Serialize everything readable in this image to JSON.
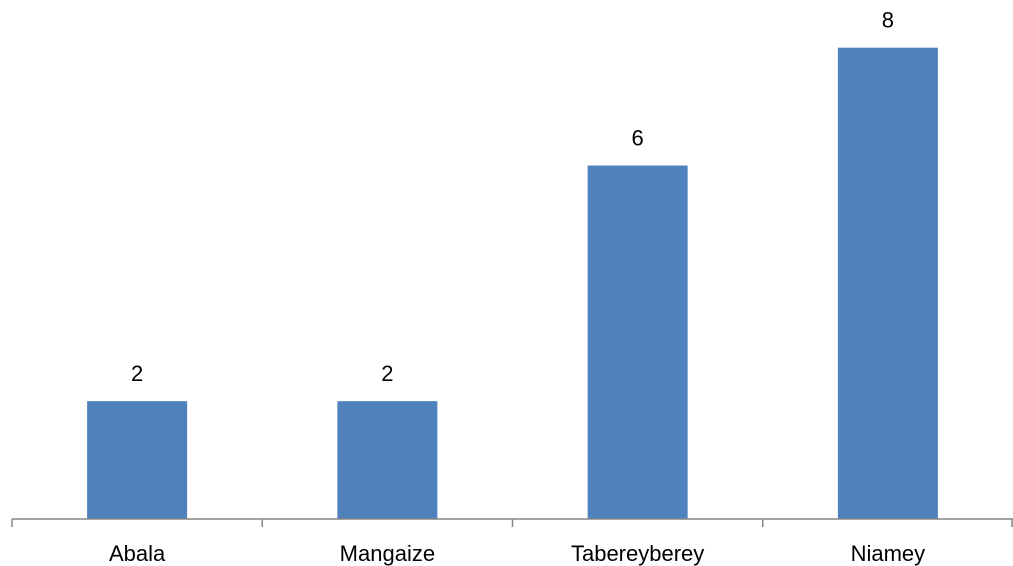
{
  "chart_data": {
    "type": "bar",
    "categories": [
      "Abala",
      "Mangaize",
      "Tabereyberey",
      "Niamey"
    ],
    "values": [
      2,
      2,
      6,
      8
    ],
    "data_labels": [
      "2",
      "2",
      "6",
      "8"
    ],
    "title": "",
    "xlabel": "",
    "ylabel": "",
    "ylim": [
      0,
      8.3
    ],
    "grid": false,
    "legend": "none",
    "colors": {
      "bar": "#4f81bd",
      "axis": "#868686",
      "text": "#000000"
    }
  }
}
